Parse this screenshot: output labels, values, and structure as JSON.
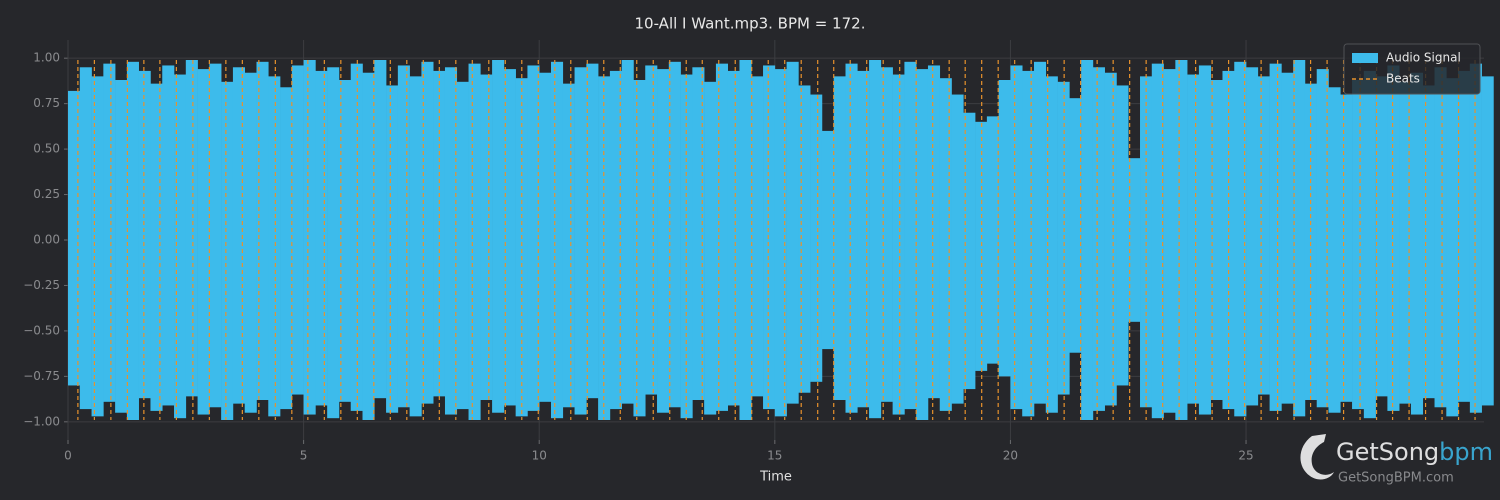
{
  "chart_data": {
    "type": "waveform",
    "title": "10-All I Want.mp3. BPM = 172.",
    "xlabel": "Time",
    "x": [
      0,
      0.25,
      0.5,
      0.75,
      1,
      1.25,
      1.5,
      1.75,
      2,
      2.25,
      2.5,
      2.75,
      3,
      3.25,
      3.5,
      3.75,
      4,
      4.25,
      4.5,
      4.75,
      5,
      5.25,
      5.5,
      5.75,
      6,
      6.25,
      6.5,
      6.75,
      7,
      7.25,
      7.5,
      7.75,
      8,
      8.25,
      8.5,
      8.75,
      9,
      9.25,
      9.5,
      9.75,
      10,
      10.25,
      10.5,
      10.75,
      11,
      11.25,
      11.5,
      11.75,
      12,
      12.25,
      12.5,
      12.75,
      13,
      13.25,
      13.5,
      13.75,
      14,
      14.25,
      14.5,
      14.75,
      15,
      15.25,
      15.5,
      15.75,
      16,
      16.25,
      16.5,
      16.75,
      17,
      17.25,
      17.5,
      17.75,
      18,
      18.25,
      18.5,
      18.75,
      19,
      19.25,
      19.5,
      19.75,
      20,
      20.25,
      20.5,
      20.75,
      21,
      21.25,
      21.5,
      21.75,
      22,
      22.25,
      22.5,
      22.75,
      23,
      23.25,
      23.5,
      23.75,
      24,
      24.25,
      24.5,
      24.75,
      25,
      25.25,
      25.5,
      25.75,
      26,
      26.25,
      26.5,
      26.75,
      27,
      27.25,
      27.5,
      27.75,
      28,
      28.25,
      28.5,
      28.75,
      29,
      29.25,
      29.5,
      29.75,
      30
    ],
    "series": [
      {
        "name": "Audio Signal",
        "color": "#3dbbeb",
        "values": [
          0.82,
          0.95,
          0.9,
          0.97,
          0.88,
          0.98,
          0.93,
          0.86,
          0.96,
          0.91,
          0.99,
          0.94,
          0.97,
          0.87,
          0.95,
          0.92,
          0.98,
          0.9,
          0.84,
          0.96,
          0.99,
          0.93,
          0.95,
          0.88,
          0.97,
          0.92,
          0.99,
          0.85,
          0.96,
          0.9,
          0.98,
          0.93,
          0.95,
          0.87,
          0.97,
          0.91,
          0.99,
          0.94,
          0.89,
          0.96,
          0.92,
          0.98,
          0.86,
          0.95,
          0.97,
          0.9,
          0.93,
          0.99,
          0.88,
          0.96,
          0.94,
          0.98,
          0.91,
          0.95,
          0.87,
          0.97,
          0.93,
          0.99,
          0.9,
          0.96,
          0.94,
          0.98,
          0.85,
          0.8,
          0.6,
          0.9,
          0.97,
          0.93,
          0.99,
          0.95,
          0.91,
          0.98,
          0.94,
          0.96,
          0.89,
          0.8,
          0.7,
          0.65,
          0.68,
          0.88,
          0.96,
          0.93,
          0.98,
          0.9,
          0.87,
          0.78,
          0.99,
          0.95,
          0.92,
          0.85,
          0.45,
          0.9,
          0.97,
          0.94,
          0.99,
          0.91,
          0.96,
          0.88,
          0.93,
          0.98,
          0.95,
          0.9,
          0.97,
          0.92,
          0.99,
          0.86,
          0.94,
          0.84,
          0.8,
          0.88,
          0.93,
          0.9,
          0.96,
          0.87,
          0.92,
          0.85,
          0.95,
          0.89,
          0.93,
          0.97,
          0.9
        ],
        "lower": [
          -0.8,
          -0.93,
          -0.97,
          -0.89,
          -0.95,
          -0.99,
          -0.87,
          -0.94,
          -0.91,
          -0.98,
          -0.86,
          -0.96,
          -0.92,
          -0.99,
          -0.9,
          -0.95,
          -0.88,
          -0.97,
          -0.93,
          -0.85,
          -0.96,
          -0.91,
          -0.98,
          -0.89,
          -0.94,
          -0.99,
          -0.87,
          -0.95,
          -0.92,
          -0.97,
          -0.9,
          -0.86,
          -0.96,
          -0.93,
          -0.99,
          -0.88,
          -0.95,
          -0.91,
          -0.97,
          -0.94,
          -0.89,
          -0.98,
          -0.92,
          -0.96,
          -0.87,
          -0.99,
          -0.93,
          -0.9,
          -0.97,
          -0.85,
          -0.95,
          -0.92,
          -0.98,
          -0.88,
          -0.96,
          -0.94,
          -0.91,
          -0.99,
          -0.86,
          -0.93,
          -0.97,
          -0.9,
          -0.84,
          -0.78,
          -0.6,
          -0.88,
          -0.95,
          -0.92,
          -0.98,
          -0.89,
          -0.96,
          -0.93,
          -0.99,
          -0.87,
          -0.94,
          -0.9,
          -0.82,
          -0.72,
          -0.68,
          -0.75,
          -0.93,
          -0.97,
          -0.9,
          -0.95,
          -0.85,
          -0.62,
          -0.99,
          -0.94,
          -0.91,
          -0.8,
          -0.45,
          -0.92,
          -0.98,
          -0.95,
          -0.99,
          -0.9,
          -0.96,
          -0.88,
          -0.93,
          -0.97,
          -0.91,
          -0.85,
          -0.94,
          -0.9,
          -0.97,
          -0.88,
          -0.92,
          -0.95,
          -0.89,
          -0.93,
          -0.98,
          -0.86,
          -0.94,
          -0.9,
          -0.96,
          -0.87,
          -0.92,
          -0.97,
          -0.89,
          -0.95,
          -0.91
        ]
      },
      {
        "name": "Beats",
        "color": "#e8922c",
        "x": [
          0.21,
          0.56,
          0.91,
          1.26,
          1.61,
          1.95,
          2.3,
          2.65,
          3,
          3.35,
          3.7,
          4.05,
          4.4,
          4.75,
          5.09,
          5.44,
          5.79,
          6.14,
          6.49,
          6.84,
          7.19,
          7.54,
          7.88,
          8.23,
          8.58,
          8.93,
          9.28,
          9.63,
          9.98,
          10.33,
          10.67,
          11.02,
          11.37,
          11.72,
          12.07,
          12.42,
          12.77,
          13.12,
          13.46,
          13.81,
          14.16,
          14.51,
          14.86,
          15.21,
          15.56,
          15.91,
          16.25,
          16.6,
          16.95,
          17.3,
          17.65,
          18,
          18.35,
          18.7,
          19.04,
          19.39,
          19.74,
          20.09,
          20.44,
          20.79,
          21.14,
          21.49,
          21.84,
          22.18,
          22.53,
          22.88,
          23.23,
          23.58,
          23.93,
          24.28,
          24.63,
          24.97,
          25.32,
          25.67,
          26.02,
          26.37,
          26.72,
          27.07,
          27.42,
          27.77,
          28.11,
          28.46,
          28.81,
          29.16,
          29.51,
          29.86
        ]
      }
    ],
    "xlim": [
      0,
      30.05
    ],
    "xticks": [
      0,
      5,
      10,
      15,
      20,
      25
    ],
    "ylim": [
      -1.1,
      1.1
    ],
    "yticks": [
      {
        "value": 1,
        "label": "1.00"
      },
      {
        "value": 0.75,
        "label": "0.75"
      },
      {
        "value": 0.5,
        "label": "0.50"
      },
      {
        "value": 0.25,
        "label": "0.25"
      },
      {
        "value": 0,
        "label": "0.00"
      },
      {
        "value": -0.25,
        "label": "−0.25"
      },
      {
        "value": -0.5,
        "label": "−0.50"
      },
      {
        "value": -0.75,
        "label": "−0.75"
      },
      {
        "value": -1,
        "label": "−1.00"
      }
    ],
    "grid": true,
    "legend": "upper right"
  },
  "watermark": {
    "brand": "GetSong",
    "brand_suffix": "bpm",
    "url": "GetSongBPM.com"
  }
}
